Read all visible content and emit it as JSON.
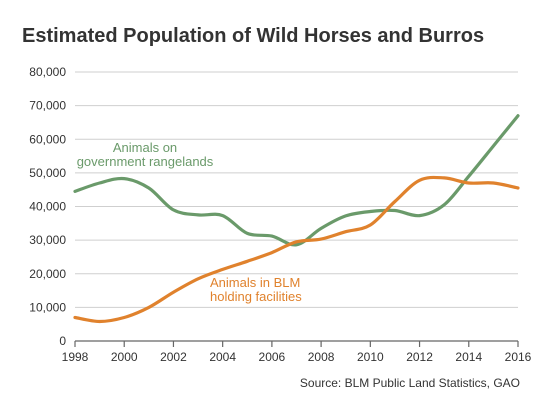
{
  "chart_data": {
    "type": "line",
    "title": "Estimated Population of Wild Horses and Burros",
    "source": "Source: BLM Public Land Statistics, GAO",
    "xlabel": "",
    "ylabel": "",
    "xlim": [
      1998,
      2016
    ],
    "ylim": [
      0,
      80000
    ],
    "x_ticks": [
      1998,
      2000,
      2002,
      2004,
      2006,
      2008,
      2010,
      2012,
      2014,
      2016
    ],
    "x_tick_labels": [
      "1998",
      "2000",
      "2002",
      "2004",
      "2006",
      "2008",
      "2010",
      "2012",
      "2014",
      "2016"
    ],
    "y_ticks": [
      0,
      10000,
      20000,
      30000,
      40000,
      50000,
      60000,
      70000,
      80000
    ],
    "y_tick_labels": [
      "0",
      "10,000",
      "20,000",
      "30,000",
      "40,000",
      "50,000",
      "60,000",
      "70,000",
      "80,000"
    ],
    "grid": "horizontal",
    "x": [
      1998,
      1999,
      2000,
      2001,
      2002,
      2003,
      2004,
      2005,
      2006,
      2007,
      2008,
      2009,
      2010,
      2011,
      2012,
      2013,
      2014,
      2015,
      2016
    ],
    "series": [
      {
        "name": "Animals on government rangelands",
        "label_lines": [
          "Animals on",
          "government rangelands"
        ],
        "color": "#6a9a6a",
        "values": [
          44500,
          47000,
          48300,
          45500,
          39000,
          37500,
          37300,
          32000,
          31200,
          28600,
          33500,
          37200,
          38500,
          38800,
          37300,
          40500,
          49000,
          58000,
          67000
        ]
      },
      {
        "name": "Animals in BLM holding facilities",
        "label_lines": [
          "Animals in BLM",
          "holding facilities"
        ],
        "color": "#e0822d",
        "values": [
          7000,
          5800,
          7000,
          10000,
          14500,
          18500,
          21300,
          23700,
          26300,
          29500,
          30300,
          32500,
          34500,
          41500,
          47800,
          48500,
          47000,
          47000,
          45500
        ]
      }
    ]
  }
}
